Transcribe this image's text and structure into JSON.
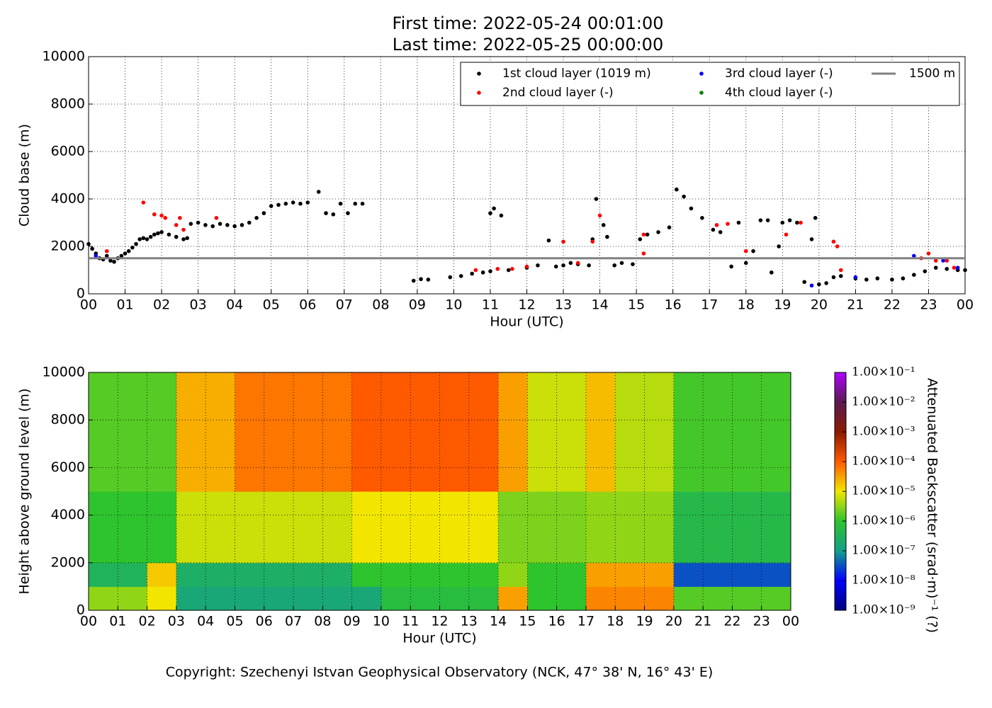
{
  "chart_data": [
    {
      "type": "scatter",
      "title": [
        "First time: 2022-05-24 00:01:00",
        "Last time: 2022-05-25 00:00:00"
      ],
      "x_label": "Hour (UTC)",
      "y_label": "Cloud base (m)",
      "xlim": [
        0,
        24
      ],
      "ylim": [
        0,
        10000
      ],
      "xticks": [
        {
          "value": 0,
          "label": "00"
        },
        {
          "value": 1,
          "label": "01"
        },
        {
          "value": 2,
          "label": "02"
        },
        {
          "value": 3,
          "label": "03"
        },
        {
          "value": 4,
          "label": "04"
        },
        {
          "value": 5,
          "label": "05"
        },
        {
          "value": 6,
          "label": "06"
        },
        {
          "value": 7,
          "label": "07"
        },
        {
          "value": 8,
          "label": "08"
        },
        {
          "value": 9,
          "label": "09"
        },
        {
          "value": 10,
          "label": "10"
        },
        {
          "value": 11,
          "label": "11"
        },
        {
          "value": 12,
          "label": "12"
        },
        {
          "value": 13,
          "label": "13"
        },
        {
          "value": 14,
          "label": "14"
        },
        {
          "value": 15,
          "label": "15"
        },
        {
          "value": 16,
          "label": "16"
        },
        {
          "value": 17,
          "label": "17"
        },
        {
          "value": 18,
          "label": "18"
        },
        {
          "value": 19,
          "label": "19"
        },
        {
          "value": 20,
          "label": "20"
        },
        {
          "value": 21,
          "label": "21"
        },
        {
          "value": 22,
          "label": "22"
        },
        {
          "value": 23,
          "label": "23"
        },
        {
          "value": 24,
          "label": "00"
        }
      ],
      "yticks": [
        0,
        2000,
        4000,
        6000,
        8000,
        10000
      ],
      "grid": true,
      "legend": "upper right",
      "series": [
        {
          "name": "1st cloud layer (1019 m)",
          "color": "#000000",
          "x": [
            0.0,
            0.1,
            0.2,
            0.3,
            0.4,
            0.5,
            0.6,
            0.7,
            0.8,
            0.9,
            1.0,
            1.1,
            1.2,
            1.3,
            1.4,
            1.5,
            1.6,
            1.7,
            1.8,
            1.9,
            2.0,
            2.2,
            2.4,
            2.6,
            2.7,
            2.8,
            3.0,
            3.2,
            3.4,
            3.6,
            3.8,
            4.0,
            4.2,
            4.4,
            4.6,
            4.8,
            5.0,
            5.2,
            5.4,
            5.6,
            5.8,
            6.0,
            6.3,
            6.5,
            6.7,
            6.9,
            7.1,
            7.3,
            7.5,
            8.9,
            9.1,
            9.3,
            9.9,
            10.2,
            10.5,
            10.8,
            11.0,
            11.0,
            11.1,
            11.3,
            11.5,
            12.0,
            12.3,
            12.6,
            12.8,
            13.0,
            13.2,
            13.4,
            13.7,
            13.8,
            13.9,
            14.1,
            14.2,
            14.4,
            14.6,
            14.9,
            15.1,
            15.3,
            15.6,
            15.9,
            16.1,
            16.3,
            16.5,
            16.8,
            17.1,
            17.3,
            17.6,
            17.8,
            18.0,
            18.2,
            18.4,
            18.6,
            18.7,
            18.9,
            19.0,
            19.2,
            19.4,
            19.6,
            19.8,
            19.9,
            20.0,
            20.2,
            20.4,
            20.6,
            21.0,
            21.3,
            21.6,
            22.0,
            22.3,
            22.6,
            22.9,
            23.2,
            23.5,
            23.8,
            24.0
          ],
          "values": [
            2100,
            1900,
            1700,
            1500,
            1450,
            1600,
            1400,
            1350,
            1500,
            1600,
            1700,
            1800,
            1950,
            2100,
            2300,
            2350,
            2300,
            2400,
            2500,
            2550,
            2600,
            2500,
            2400,
            2300,
            2350,
            2950,
            3000,
            2900,
            2850,
            2950,
            2900,
            2850,
            2900,
            3000,
            3200,
            3400,
            3700,
            3750,
            3800,
            3850,
            3800,
            3850,
            4300,
            3400,
            3350,
            3800,
            3400,
            3800,
            3800,
            550,
            620,
            600,
            700,
            750,
            850,
            900,
            950,
            3400,
            3600,
            3300,
            1000,
            1100,
            1200,
            2250,
            1150,
            1200,
            1300,
            1250,
            1200,
            2300,
            4000,
            2900,
            2400,
            1200,
            1300,
            1250,
            2300,
            2500,
            2600,
            2800,
            4400,
            4100,
            3600,
            3200,
            2700,
            2600,
            1150,
            3000,
            1300,
            1800,
            3100,
            3100,
            900,
            2000,
            3000,
            3100,
            3000,
            500,
            2300,
            3200,
            400,
            450,
            700,
            750,
            650,
            600,
            650,
            600,
            650,
            800,
            950,
            1100,
            1050,
            1000,
            1000
          ]
        },
        {
          "name": "2nd cloud layer (-)",
          "color": "#ff0000",
          "x": [
            0.5,
            1.5,
            1.8,
            2.0,
            2.1,
            2.4,
            2.5,
            2.6,
            3.5,
            10.6,
            11.2,
            11.6,
            12.0,
            13.0,
            13.4,
            13.8,
            14.0,
            15.2,
            15.2,
            17.2,
            17.5,
            18.0,
            19.1,
            19.5,
            20.4,
            20.5,
            20.6,
            22.8,
            23.0,
            23.2,
            23.5,
            23.7
          ],
          "values": [
            1800,
            3850,
            3350,
            3300,
            3200,
            2900,
            3200,
            2700,
            3200,
            1000,
            1050,
            1050,
            1150,
            2200,
            1300,
            2200,
            3300,
            1700,
            2500,
            2900,
            2950,
            1800,
            2500,
            3000,
            2200,
            2000,
            1000,
            1500,
            1700,
            1400,
            1400,
            1100
          ]
        },
        {
          "name": "3rd cloud layer (-)",
          "color": "#0000ff",
          "x": [
            0.2,
            19.8,
            21.0,
            22.6,
            23.4,
            23.8
          ],
          "values": [
            1600,
            350,
            700,
            1600,
            1400,
            1100
          ]
        },
        {
          "name": "4th cloud layer (-)",
          "color": "#008000",
          "x": [],
          "values": []
        }
      ],
      "hlines": [
        {
          "name": "1500 m",
          "value": 1500,
          "color": "#808080"
        }
      ]
    },
    {
      "type": "heatmap",
      "x_label": "Hour (UTC)",
      "y_label": "Height above ground level (m)",
      "colorbar_label": "Attenuated Backscatter (srad·m)⁻¹ (?)",
      "xlim": [
        0,
        24
      ],
      "ylim": [
        0,
        10000
      ],
      "xticks": [
        {
          "value": 0,
          "label": "00"
        },
        {
          "value": 1,
          "label": "01"
        },
        {
          "value": 2,
          "label": "02"
        },
        {
          "value": 3,
          "label": "03"
        },
        {
          "value": 4,
          "label": "04"
        },
        {
          "value": 5,
          "label": "05"
        },
        {
          "value": 6,
          "label": "06"
        },
        {
          "value": 7,
          "label": "07"
        },
        {
          "value": 8,
          "label": "08"
        },
        {
          "value": 9,
          "label": "09"
        },
        {
          "value": 10,
          "label": "10"
        },
        {
          "value": 11,
          "label": "11"
        },
        {
          "value": 12,
          "label": "12"
        },
        {
          "value": 13,
          "label": "13"
        },
        {
          "value": 14,
          "label": "14"
        },
        {
          "value": 15,
          "label": "15"
        },
        {
          "value": 16,
          "label": "16"
        },
        {
          "value": 17,
          "label": "17"
        },
        {
          "value": 18,
          "label": "18"
        },
        {
          "value": 19,
          "label": "19"
        },
        {
          "value": 20,
          "label": "20"
        },
        {
          "value": 21,
          "label": "21"
        },
        {
          "value": 22,
          "label": "22"
        },
        {
          "value": 23,
          "label": "23"
        },
        {
          "value": 24,
          "label": "00"
        }
      ],
      "yticks": [
        0,
        2000,
        4000,
        6000,
        8000,
        10000
      ],
      "grid": true,
      "x_edges": [
        0,
        1,
        2,
        3,
        4,
        5,
        6,
        7,
        8,
        9,
        10,
        11,
        12,
        13,
        14,
        15,
        16,
        17,
        18,
        19,
        20,
        21,
        22,
        23,
        24
      ],
      "y_edges": [
        0,
        1000,
        2000,
        3000,
        4000,
        5000,
        6000,
        7000,
        8000,
        9000,
        10000
      ],
      "zlim": [
        1e-09,
        0.1
      ],
      "zlog": true,
      "zticks": [
        {
          "value": 1e-09,
          "label": "1.00×10⁻⁹"
        },
        {
          "value": 1e-08,
          "label": "1.00×10⁻⁸"
        },
        {
          "value": 1e-07,
          "label": "1.00×10⁻⁷"
        },
        {
          "value": 1e-06,
          "label": "1.00×10⁻⁶"
        },
        {
          "value": 1e-05,
          "label": "1.00×10⁻⁵"
        },
        {
          "value": 0.0001,
          "label": "1.00×10⁻⁴"
        },
        {
          "value": 0.001,
          "label": "1.00×10⁻³"
        },
        {
          "value": 0.01,
          "label": "1.00×10⁻²"
        },
        {
          "value": 0.1,
          "label": "1.00×10⁻¹"
        }
      ],
      "colormap": [
        "#000080",
        "#0000ff",
        "#13a08a",
        "#2ec42e",
        "#f2e600",
        "#ff5a00",
        "#8b1a00",
        "#5a1a50",
        "#b000ff"
      ],
      "z": [
        [
          3.2e-06,
          3.2e-06,
          1e-05,
          1.6e-07,
          1.6e-07,
          1.6e-07,
          1.6e-07,
          1.6e-07,
          1.6e-07,
          1.6e-07,
          6.3e-07,
          6.3e-07,
          6.3e-07,
          6.3e-07,
          3.2e-05,
          1e-06,
          1e-06,
          5e-05,
          5e-05,
          5e-05,
          1.6e-06,
          1.6e-06,
          1.6e-06,
          1.6e-06
        ],
        [
          3.2e-07,
          3.2e-07,
          1.6e-05,
          2.5e-07,
          2.5e-07,
          2.5e-07,
          2.5e-07,
          2.5e-07,
          2.5e-07,
          1e-06,
          1e-06,
          1e-06,
          1e-06,
          1e-06,
          3.2e-06,
          1e-06,
          1e-06,
          3.2e-05,
          3.2e-05,
          3.2e-05,
          3.2e-08,
          3.2e-08,
          3.2e-08,
          3.2e-08
        ],
        [
          1e-06,
          1e-06,
          1e-06,
          6.3e-06,
          6.3e-06,
          6.3e-06,
          6.3e-06,
          6.3e-06,
          6.3e-06,
          1e-05,
          1e-05,
          1e-05,
          1e-05,
          1e-05,
          2.5e-06,
          2.5e-06,
          2.5e-06,
          3.2e-06,
          3.2e-06,
          3.2e-06,
          5e-07,
          5e-07,
          5e-07,
          5e-07
        ],
        [
          1e-06,
          1e-06,
          1e-06,
          6.3e-06,
          6.3e-06,
          6.3e-06,
          6.3e-06,
          6.3e-06,
          6.3e-06,
          1e-05,
          1e-05,
          1e-05,
          1e-05,
          1e-05,
          2.5e-06,
          2.5e-06,
          2.5e-06,
          3.2e-06,
          3.2e-06,
          3.2e-06,
          5e-07,
          5e-07,
          5e-07,
          5e-07
        ],
        [
          1e-06,
          1e-06,
          1e-06,
          6.3e-06,
          6.3e-06,
          6.3e-06,
          6.3e-06,
          6.3e-06,
          6.3e-06,
          1e-05,
          1e-05,
          1e-05,
          1e-05,
          1e-05,
          2.5e-06,
          2.5e-06,
          2.5e-06,
          3.2e-06,
          3.2e-06,
          3.2e-06,
          5e-07,
          5e-07,
          5e-07,
          5e-07
        ],
        [
          1.6e-06,
          1.6e-06,
          1.6e-06,
          2.5e-05,
          2.5e-05,
          6.3e-05,
          6.3e-05,
          6.3e-05,
          6.3e-05,
          0.0001,
          0.0001,
          0.0001,
          0.0001,
          0.0001,
          3.2e-05,
          6.3e-06,
          6.3e-06,
          2e-05,
          5e-06,
          5e-06,
          1.3e-06,
          1.3e-06,
          1.3e-06,
          1.3e-06
        ],
        [
          1.6e-06,
          1.6e-06,
          1.6e-06,
          2.5e-05,
          2.5e-05,
          6.3e-05,
          6.3e-05,
          6.3e-05,
          6.3e-05,
          0.0001,
          0.0001,
          0.0001,
          0.0001,
          0.0001,
          3.2e-05,
          6.3e-06,
          6.3e-06,
          2e-05,
          5e-06,
          5e-06,
          1.3e-06,
          1.3e-06,
          1.3e-06,
          1.3e-06
        ],
        [
          1.6e-06,
          1.6e-06,
          1.6e-06,
          2.5e-05,
          2.5e-05,
          6.3e-05,
          6.3e-05,
          6.3e-05,
          6.3e-05,
          0.0001,
          0.0001,
          0.0001,
          0.0001,
          0.0001,
          3.2e-05,
          6.3e-06,
          6.3e-06,
          2e-05,
          5e-06,
          5e-06,
          1.3e-06,
          1.3e-06,
          1.3e-06,
          1.3e-06
        ],
        [
          1.6e-06,
          1.6e-06,
          1.6e-06,
          2.5e-05,
          2.5e-05,
          6.3e-05,
          6.3e-05,
          6.3e-05,
          6.3e-05,
          0.0001,
          0.0001,
          0.0001,
          0.0001,
          0.0001,
          3.2e-05,
          6.3e-06,
          6.3e-06,
          2e-05,
          5e-06,
          5e-06,
          1.3e-06,
          1.3e-06,
          1.3e-06,
          1.3e-06
        ],
        [
          1.6e-06,
          1.6e-06,
          1.6e-06,
          2.5e-05,
          2.5e-05,
          6.3e-05,
          6.3e-05,
          6.3e-05,
          6.3e-05,
          0.0001,
          0.0001,
          0.0001,
          0.0001,
          0.0001,
          3.2e-05,
          6.3e-06,
          6.3e-06,
          2e-05,
          5e-06,
          5e-06,
          1.3e-06,
          1.3e-06,
          1.3e-06,
          1.3e-06
        ]
      ]
    }
  ],
  "footer": "Copyright: Szechenyi Istvan Geophysical Observatory (NCK, 47° 38' N, 16° 43' E)"
}
